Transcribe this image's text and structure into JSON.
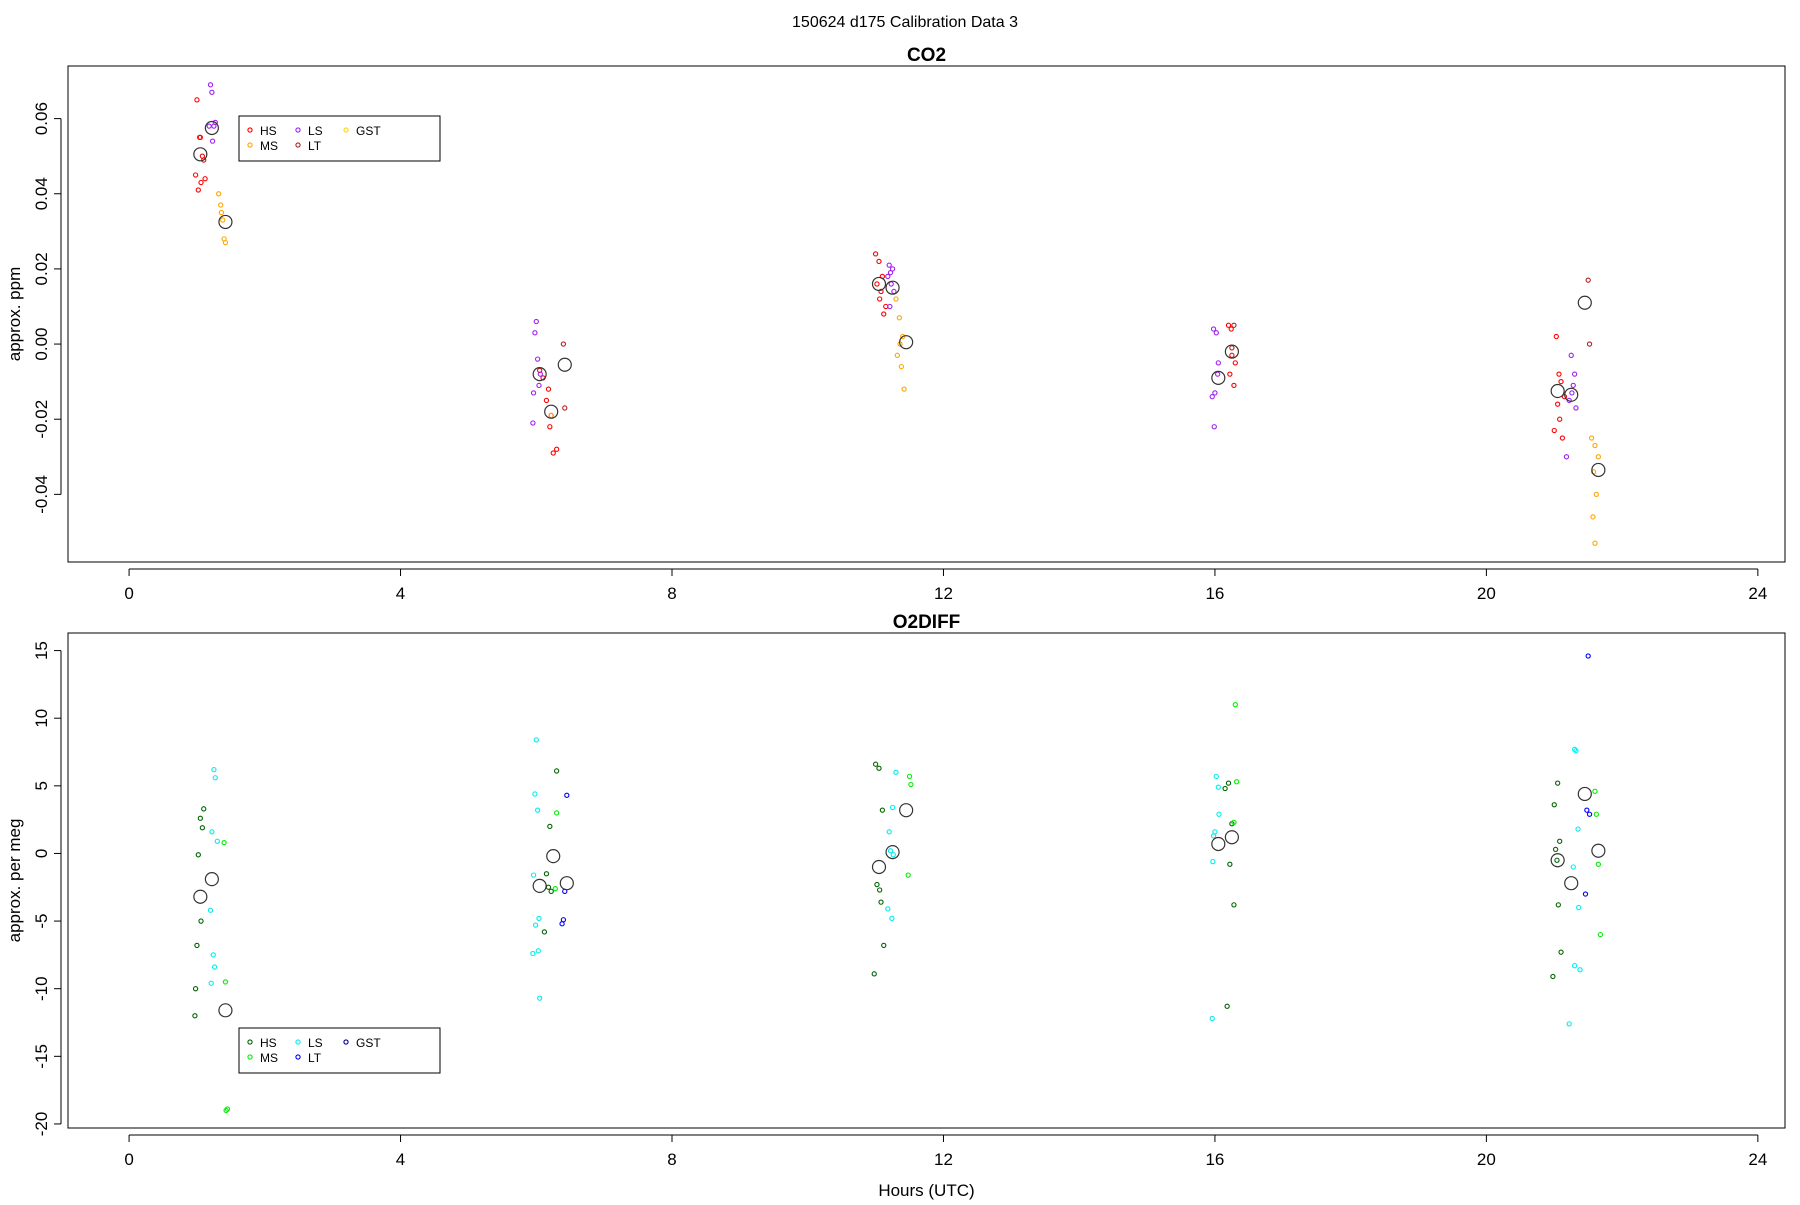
{
  "figure": {
    "title": "150624   d175   Calibration Data 3"
  },
  "chart_data": [
    {
      "type": "scatter",
      "title": "CO2",
      "xlabel": "",
      "ylabel": "approx. ppm",
      "xlim": [
        -0.9,
        24.4
      ],
      "ylim": [
        -0.058,
        0.074
      ],
      "xticks": [
        0,
        4,
        8,
        12,
        16,
        20,
        24
      ],
      "yticks": [
        -0.04,
        -0.02,
        0.0,
        0.02,
        0.04,
        0.06
      ],
      "ytick_labels": [
        "-0.04",
        "-0.02",
        "0.00",
        "0.02",
        "0.04",
        "0.06"
      ],
      "grid": false,
      "legend_position": "top-left",
      "legend_ncol": 3,
      "series": [
        {
          "name": "HS",
          "color": "#ff0000",
          "points": [
            [
              1.0,
              0.065
            ],
            [
              1.05,
              0.055
            ],
            [
              1.1,
              0.049
            ],
            [
              0.98,
              0.045
            ],
            [
              1.02,
              0.041
            ],
            [
              1.12,
              0.044
            ],
            [
              1.06,
              0.043
            ],
            [
              1.08,
              0.05
            ],
            [
              1.04,
              0.055
            ],
            [
              6.05,
              -0.007
            ],
            [
              6.15,
              -0.015
            ],
            [
              6.2,
              -0.022
            ],
            [
              6.25,
              -0.029
            ],
            [
              6.3,
              -0.028
            ],
            [
              6.1,
              -0.009
            ],
            [
              6.18,
              -0.012
            ],
            [
              6.22,
              -0.019
            ],
            [
              11.0,
              0.024
            ],
            [
              11.05,
              0.022
            ],
            [
              11.1,
              0.018
            ],
            [
              11.08,
              0.014
            ],
            [
              11.15,
              0.01
            ],
            [
              11.02,
              0.016
            ],
            [
              11.12,
              0.008
            ],
            [
              11.06,
              0.012
            ],
            [
              16.2,
              0.005
            ],
            [
              16.25,
              -0.003
            ],
            [
              16.3,
              -0.005
            ],
            [
              16.22,
              -0.008
            ],
            [
              16.28,
              -0.011
            ],
            [
              16.24,
              0.004
            ],
            [
              21.0,
              -0.023
            ],
            [
              21.05,
              -0.016
            ],
            [
              21.1,
              -0.01
            ],
            [
              21.08,
              -0.02
            ],
            [
              21.12,
              -0.025
            ],
            [
              21.03,
              0.002
            ],
            [
              21.07,
              -0.008
            ],
            [
              21.15,
              -0.014
            ]
          ]
        },
        {
          "name": "MS",
          "color": "#ffa500",
          "points": [
            [
              1.32,
              0.04
            ],
            [
              1.35,
              0.037
            ],
            [
              1.38,
              0.033
            ],
            [
              1.4,
              0.028
            ],
            [
              1.42,
              0.027
            ],
            [
              1.36,
              0.035
            ],
            [
              6.22,
              -0.019
            ],
            [
              11.3,
              0.012
            ],
            [
              11.35,
              0.007
            ],
            [
              11.4,
              0.002
            ],
            [
              11.38,
              -0.006
            ],
            [
              11.42,
              -0.012
            ],
            [
              11.32,
              -0.003
            ],
            [
              11.36,
              0.0
            ],
            [
              21.55,
              -0.025
            ],
            [
              21.6,
              -0.027
            ],
            [
              21.65,
              -0.03
            ],
            [
              21.58,
              -0.034
            ],
            [
              21.62,
              -0.04
            ],
            [
              21.57,
              -0.046
            ],
            [
              21.6,
              -0.053
            ]
          ]
        },
        {
          "name": "LS",
          "color": "#a020f0",
          "points": [
            [
              1.2,
              0.069
            ],
            [
              1.22,
              0.067
            ],
            [
              1.25,
              0.058
            ],
            [
              1.18,
              0.058
            ],
            [
              1.23,
              0.054
            ],
            [
              1.27,
              0.059
            ],
            [
              6.0,
              0.006
            ],
            [
              5.98,
              0.003
            ],
            [
              6.02,
              -0.004
            ],
            [
              5.96,
              -0.013
            ],
            [
              6.04,
              -0.011
            ],
            [
              5.95,
              -0.021
            ],
            [
              6.06,
              -0.008
            ],
            [
              11.2,
              0.021
            ],
            [
              11.22,
              0.019
            ],
            [
              11.25,
              0.02
            ],
            [
              11.18,
              0.018
            ],
            [
              11.23,
              0.016
            ],
            [
              11.27,
              0.014
            ],
            [
              11.21,
              0.01
            ],
            [
              15.98,
              0.004
            ],
            [
              16.02,
              0.003
            ],
            [
              16.05,
              -0.005
            ],
            [
              15.96,
              -0.014
            ],
            [
              16.0,
              -0.013
            ],
            [
              15.99,
              -0.022
            ],
            [
              16.04,
              -0.008
            ],
            [
              21.25,
              -0.003
            ],
            [
              21.3,
              -0.008
            ],
            [
              21.28,
              -0.011
            ],
            [
              21.22,
              -0.015
            ],
            [
              21.32,
              -0.017
            ],
            [
              21.18,
              -0.03
            ],
            [
              21.26,
              -0.013
            ]
          ]
        },
        {
          "name": "LT",
          "color": "#b22222",
          "points": [
            [
              6.4,
              0.0
            ],
            [
              6.42,
              -0.017
            ],
            [
              16.28,
              0.005
            ],
            [
              16.25,
              -0.001
            ],
            [
              21.5,
              0.017
            ],
            [
              21.52,
              0.0
            ]
          ]
        },
        {
          "name": "GST",
          "color": "#ffd700",
          "points": []
        }
      ],
      "means": [
        [
          1.05,
          0.0505
        ],
        [
          1.22,
          0.0575
        ],
        [
          1.42,
          0.0325
        ],
        [
          6.05,
          -0.008
        ],
        [
          6.22,
          -0.018
        ],
        [
          6.42,
          -0.0055
        ],
        [
          11.05,
          0.016
        ],
        [
          11.25,
          0.015
        ],
        [
          11.45,
          0.0005
        ],
        [
          16.05,
          -0.009
        ],
        [
          16.25,
          -0.002
        ],
        [
          21.05,
          -0.0125
        ],
        [
          21.25,
          -0.0135
        ],
        [
          21.45,
          0.011
        ],
        [
          21.65,
          -0.0335
        ]
      ]
    },
    {
      "type": "scatter",
      "title": "O2DIFF",
      "xlabel": "Hours (UTC)",
      "ylabel": "approx. per meg",
      "xlim": [
        -0.9,
        24.4
      ],
      "ylim": [
        -20.3,
        16.3
      ],
      "xticks": [
        0,
        4,
        8,
        12,
        16,
        20,
        24
      ],
      "yticks": [
        -20,
        -15,
        -10,
        -5,
        0,
        5,
        10,
        15
      ],
      "ytick_labels": [
        "-20",
        "-15",
        "-10",
        "-5",
        "0",
        "5",
        "10",
        "15"
      ],
      "grid": false,
      "legend_position": "bottom-left",
      "legend_ncol": 3,
      "series": [
        {
          "name": "HS",
          "color": "#006400",
          "points": [
            [
              1.1,
              3.3
            ],
            [
              1.05,
              2.6
            ],
            [
              1.08,
              1.9
            ],
            [
              1.02,
              -0.1
            ],
            [
              1.06,
              -5.0
            ],
            [
              1.0,
              -6.8
            ],
            [
              0.98,
              -10.0
            ],
            [
              0.97,
              -12.0
            ],
            [
              6.2,
              2.0
            ],
            [
              6.15,
              -1.5
            ],
            [
              6.18,
              -2.5
            ],
            [
              6.22,
              -2.8
            ],
            [
              6.12,
              -5.8
            ],
            [
              6.3,
              6.1
            ],
            [
              11.0,
              6.6
            ],
            [
              11.05,
              6.3
            ],
            [
              11.1,
              3.2
            ],
            [
              11.02,
              -2.3
            ],
            [
              11.06,
              -2.7
            ],
            [
              11.08,
              -3.6
            ],
            [
              11.12,
              -6.8
            ],
            [
              10.98,
              -8.9
            ],
            [
              16.2,
              5.2
            ],
            [
              16.15,
              4.8
            ],
            [
              16.25,
              2.2
            ],
            [
              16.22,
              -0.8
            ],
            [
              16.28,
              -3.8
            ],
            [
              16.18,
              -11.3
            ],
            [
              21.05,
              5.2
            ],
            [
              21.0,
              3.6
            ],
            [
              21.08,
              0.9
            ],
            [
              21.02,
              0.3
            ],
            [
              21.04,
              -0.5
            ],
            [
              21.06,
              -3.8
            ],
            [
              21.1,
              -7.3
            ],
            [
              20.98,
              -9.1
            ]
          ]
        },
        {
          "name": "MS",
          "color": "#00ee00",
          "points": [
            [
              1.4,
              0.8
            ],
            [
              1.42,
              -9.5
            ],
            [
              1.45,
              -18.9
            ],
            [
              1.43,
              -19.0
            ],
            [
              6.3,
              3.0
            ],
            [
              6.28,
              -2.6
            ],
            [
              11.5,
              5.7
            ],
            [
              11.52,
              5.1
            ],
            [
              11.48,
              -1.6
            ],
            [
              16.3,
              11.0
            ],
            [
              16.32,
              5.3
            ],
            [
              16.28,
              2.3
            ],
            [
              21.6,
              4.6
            ],
            [
              21.62,
              2.9
            ],
            [
              21.65,
              -0.8
            ],
            [
              21.68,
              -6.0
            ]
          ]
        },
        {
          "name": "LS",
          "color": "#00eeee",
          "points": [
            [
              1.25,
              6.2
            ],
            [
              1.27,
              5.6
            ],
            [
              1.22,
              1.6
            ],
            [
              1.3,
              0.9
            ],
            [
              1.2,
              -4.2
            ],
            [
              1.24,
              -7.5
            ],
            [
              1.26,
              -8.4
            ],
            [
              1.21,
              -9.6
            ],
            [
              6.0,
              8.4
            ],
            [
              5.98,
              4.4
            ],
            [
              6.02,
              3.2
            ],
            [
              5.96,
              -1.6
            ],
            [
              6.04,
              -4.8
            ],
            [
              5.99,
              -5.3
            ],
            [
              5.95,
              -7.4
            ],
            [
              6.03,
              -7.2
            ],
            [
              6.05,
              -10.7
            ],
            [
              11.3,
              6.0
            ],
            [
              11.2,
              1.6
            ],
            [
              11.25,
              3.4
            ],
            [
              11.22,
              0.2
            ],
            [
              11.18,
              -4.1
            ],
            [
              11.24,
              -4.8
            ],
            [
              11.26,
              -0.1
            ],
            [
              16.02,
              5.7
            ],
            [
              16.05,
              4.9
            ],
            [
              16.0,
              1.6
            ],
            [
              15.98,
              1.3
            ],
            [
              16.06,
              2.9
            ],
            [
              15.97,
              -0.6
            ],
            [
              15.96,
              -12.2
            ],
            [
              21.3,
              7.7
            ],
            [
              21.32,
              7.6
            ],
            [
              21.35,
              1.8
            ],
            [
              21.28,
              -1.0
            ],
            [
              21.36,
              -4.0
            ],
            [
              21.3,
              -8.3
            ],
            [
              21.38,
              -8.6
            ],
            [
              21.22,
              -12.6
            ]
          ]
        },
        {
          "name": "LT",
          "color": "#0000ff",
          "points": [
            [
              6.45,
              4.3
            ],
            [
              6.42,
              -2.8
            ],
            [
              6.4,
              -4.9
            ],
            [
              6.38,
              -5.2
            ],
            [
              21.5,
              14.6
            ],
            [
              21.48,
              3.2
            ],
            [
              21.52,
              2.9
            ],
            [
              21.46,
              -3.0
            ]
          ]
        },
        {
          "name": "GST",
          "color": "#00008b",
          "points": []
        }
      ],
      "means": [
        [
          1.05,
          -3.2
        ],
        [
          1.22,
          -1.9
        ],
        [
          1.42,
          -11.6
        ],
        [
          6.05,
          -2.4
        ],
        [
          6.25,
          -0.2
        ],
        [
          6.45,
          -2.2
        ],
        [
          11.05,
          -1.0
        ],
        [
          11.25,
          0.1
        ],
        [
          11.45,
          3.2
        ],
        [
          16.05,
          0.7
        ],
        [
          16.25,
          1.2
        ],
        [
          21.05,
          -0.5
        ],
        [
          21.25,
          -2.2
        ],
        [
          21.45,
          4.4
        ],
        [
          21.65,
          0.2
        ]
      ]
    }
  ]
}
